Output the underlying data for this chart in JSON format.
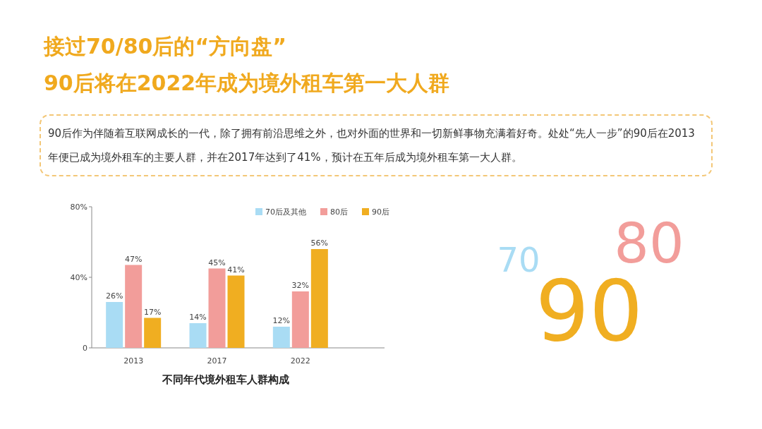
{
  "chart_data": {
    "type": "bar",
    "title": "接过70/80后的“方向盘”\n90后将在2022年成为境外租车第一大人群",
    "subtitle": "90后作为伴随着互联网成长的一代，除了拥有前沿思维之外，也对外面的世界和一切新鲜事物充满着好奇。处处“先人一步”的90后在2013年便已成为境外租车的主要人群，并在2017年达到了41%，预计在五年后成为境外租车第一大人群。",
    "xlabel": "不同年代境外租车人群构成",
    "categories": [
      "2013",
      "2017",
      "2022"
    ],
    "series": [
      {
        "name": "70后及其他",
        "color": "#a9dcf4",
        "values": [
          26,
          14,
          12
        ]
      },
      {
        "name": "80后",
        "color": "#f29d9a",
        "values": [
          47,
          45,
          32
        ]
      },
      {
        "name": "90后",
        "color": "#f0ae21",
        "values": [
          17,
          41,
          56
        ]
      }
    ],
    "ylim": [
      0,
      80
    ],
    "yticks": [
      0,
      {
        "value": 40,
        "label": "40%"
      },
      {
        "value": 80,
        "label": "80%"
      }
    ],
    "value_labels": [
      [
        "26%",
        "14%",
        "12%"
      ],
      [
        "47%",
        "45%",
        "32%"
      ],
      [
        "17%",
        "41%",
        "56%"
      ]
    ],
    "legend": "top right",
    "grid": false,
    "annotations": [
      "70",
      "80",
      "90"
    ]
  }
}
